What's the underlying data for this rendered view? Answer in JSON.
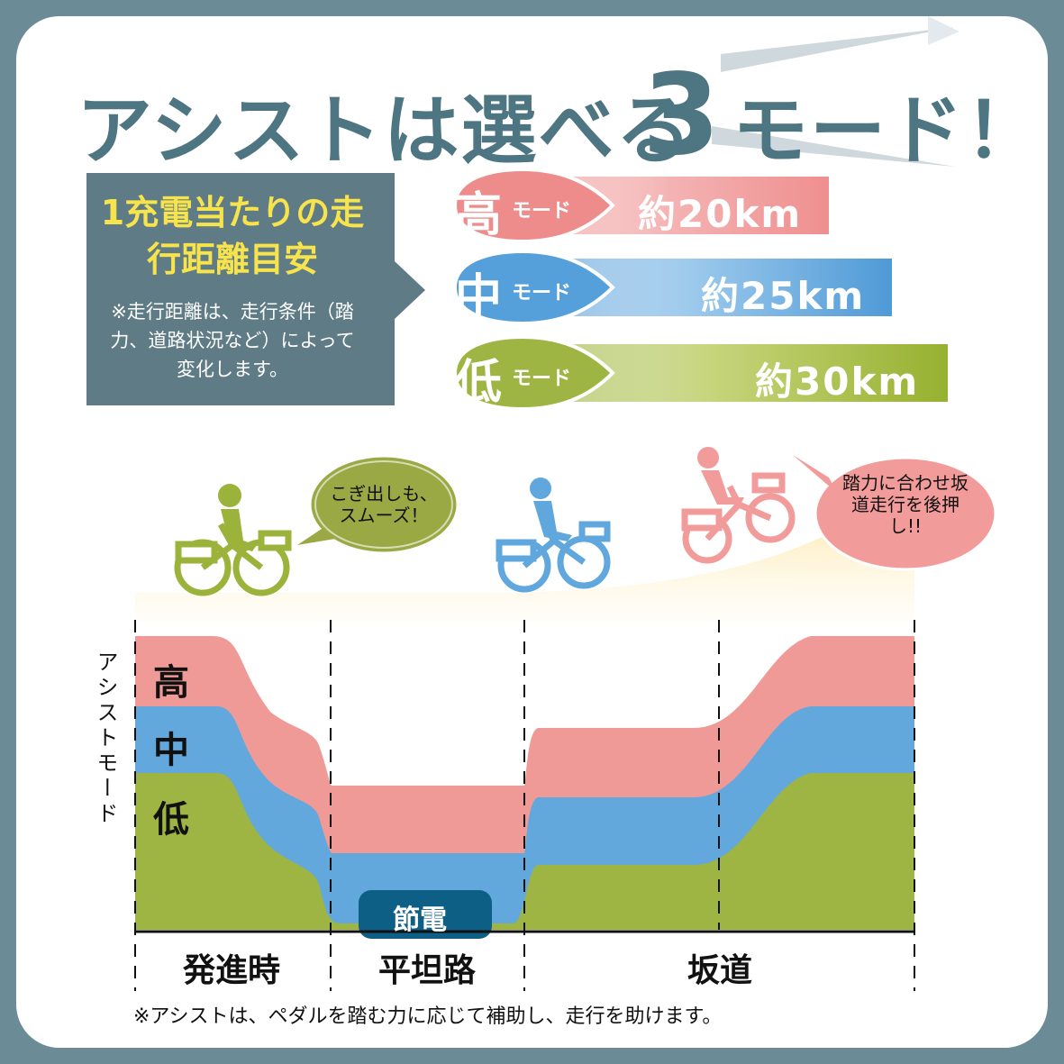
{
  "title": {
    "part1": "アシストは選べる",
    "number": "3",
    "part2": "モード！"
  },
  "infobox": {
    "title": "1充電当たりの走行距離目安",
    "note": "※走行距離は、走行条件（踏力、道路状況など）によって変化します。"
  },
  "modes": [
    {
      "label": "高",
      "suffix": "モード",
      "distance": "約20km",
      "color": "#ef8a8a"
    },
    {
      "label": "中",
      "suffix": "モード",
      "distance": "約25km",
      "color": "#5fa7dd"
    },
    {
      "label": "低",
      "suffix": "モード",
      "distance": "約30km",
      "color": "#9cb33b"
    }
  ],
  "bubbles": {
    "start": "こぎ出しも、スムーズ！",
    "slope": "踏力に合わせ坂道走行を後押し!!"
  },
  "chart": {
    "y_title": "アシストモード",
    "levels": [
      "高",
      "中",
      "低"
    ],
    "badge": "節電",
    "sections": [
      "発進時",
      "平坦路",
      "坂道"
    ]
  },
  "footnote": "※アシストは、ペダルを踏む力に応じて補助し、走行を助けます。",
  "colors": {
    "frame": "#6b8b97",
    "title": "#4d7582",
    "infobox": "#5e7b86",
    "infobox_title": "#f7e34c",
    "high": "#f09a97",
    "mid": "#63a8dc",
    "low": "#9fb543",
    "road": "#fde6a0",
    "badge": "#0e5f86",
    "bubble_green": "#9aa944",
    "bubble_pink": "#f29b9b"
  }
}
